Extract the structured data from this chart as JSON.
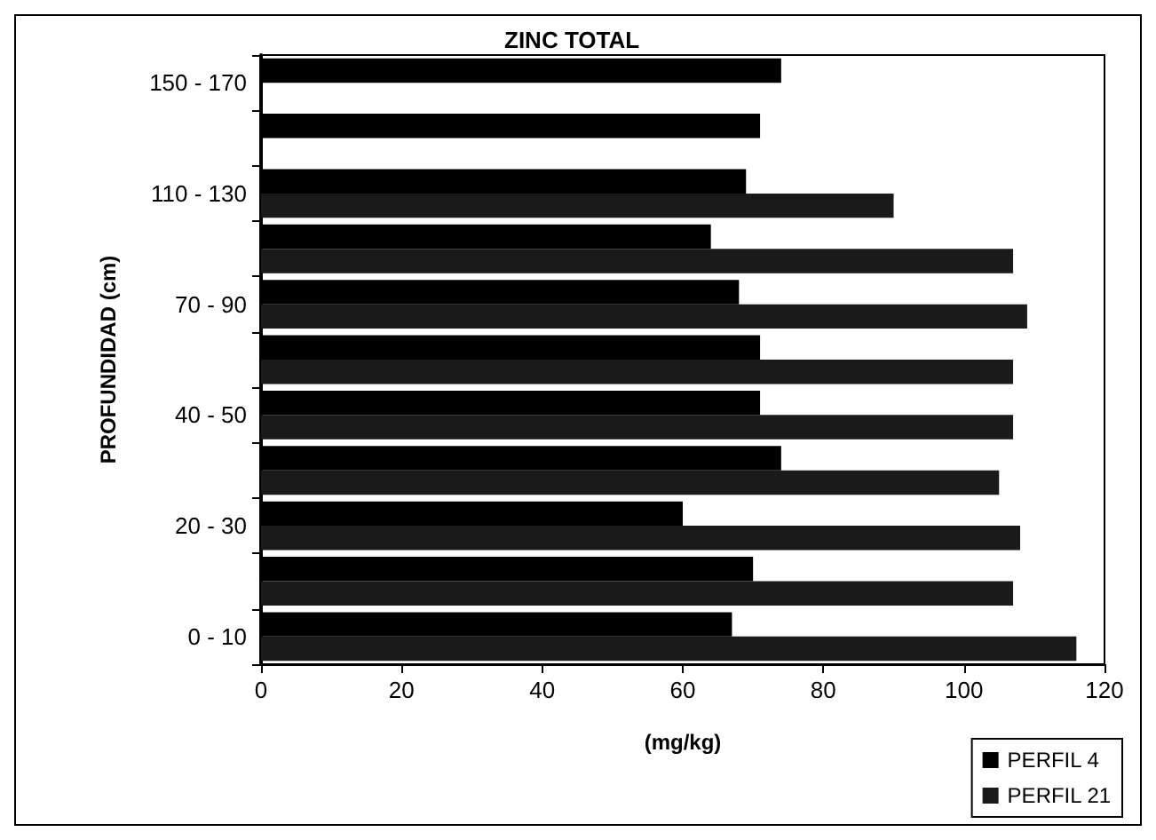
{
  "chart_data": {
    "type": "bar",
    "orientation": "horizontal",
    "title": "ZINC TOTAL",
    "xlabel": "(mg/kg)",
    "ylabel": "PROFUNDIDAD (cm)",
    "categories": [
      "150 - 170",
      null,
      "110 - 130",
      null,
      "70 - 90",
      null,
      "40 - 50",
      null,
      "20 - 30",
      null,
      "0 - 10"
    ],
    "series": [
      {
        "name": "PERFIL 4",
        "color": "#000000",
        "values": [
          74,
          71,
          69,
          64,
          68,
          71,
          71,
          74,
          60,
          70,
          67
        ]
      },
      {
        "name": "PERFIL 21",
        "color": "#1a1a1a",
        "values": [
          null,
          null,
          90,
          107,
          109,
          107,
          107,
          105,
          108,
          107,
          116
        ]
      }
    ],
    "xlim": [
      0,
      120
    ],
    "xticks": [
      0,
      20,
      40,
      60,
      80,
      100,
      120
    ],
    "grid": false,
    "legend": "bottom right"
  }
}
